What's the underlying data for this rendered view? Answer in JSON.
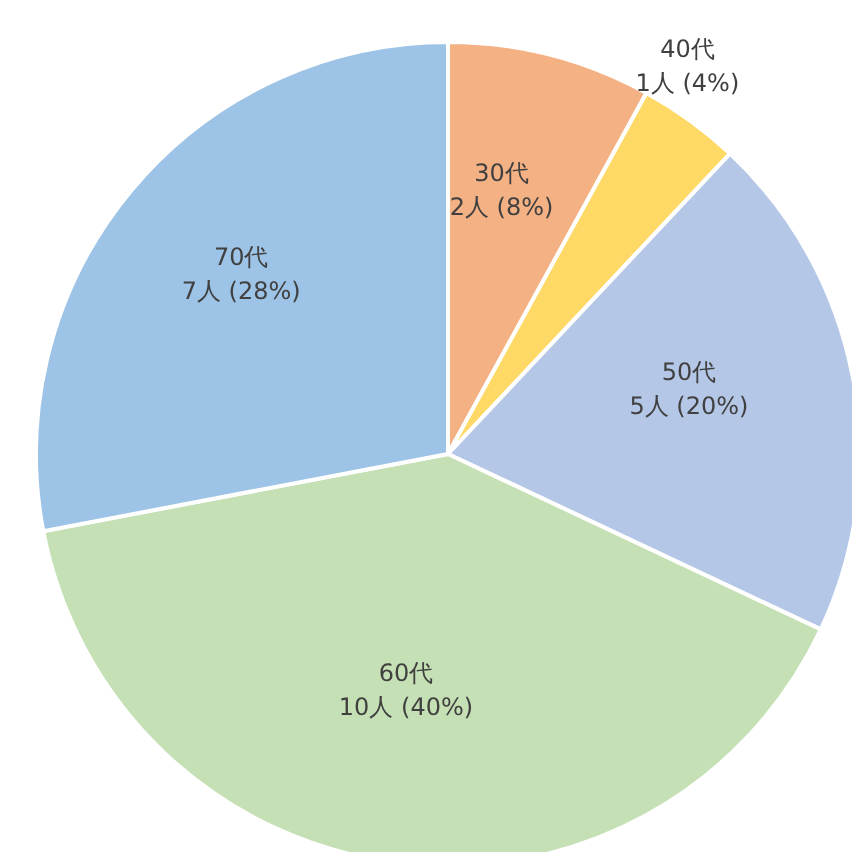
{
  "chart_data": {
    "type": "pie",
    "categories": [
      "30代",
      "40代",
      "50代",
      "60代",
      "70代"
    ],
    "values": [
      2,
      1,
      5,
      10,
      7
    ],
    "value_labels": [
      "2人 (8%)",
      "1人 (4%)",
      "5人 (20%)",
      "10人 (40%)",
      "7人 (28%)"
    ],
    "colors": [
      "#f4b183",
      "#ffd966",
      "#b4c7e7",
      "#c5e0b4",
      "#9dc3e6"
    ]
  }
}
